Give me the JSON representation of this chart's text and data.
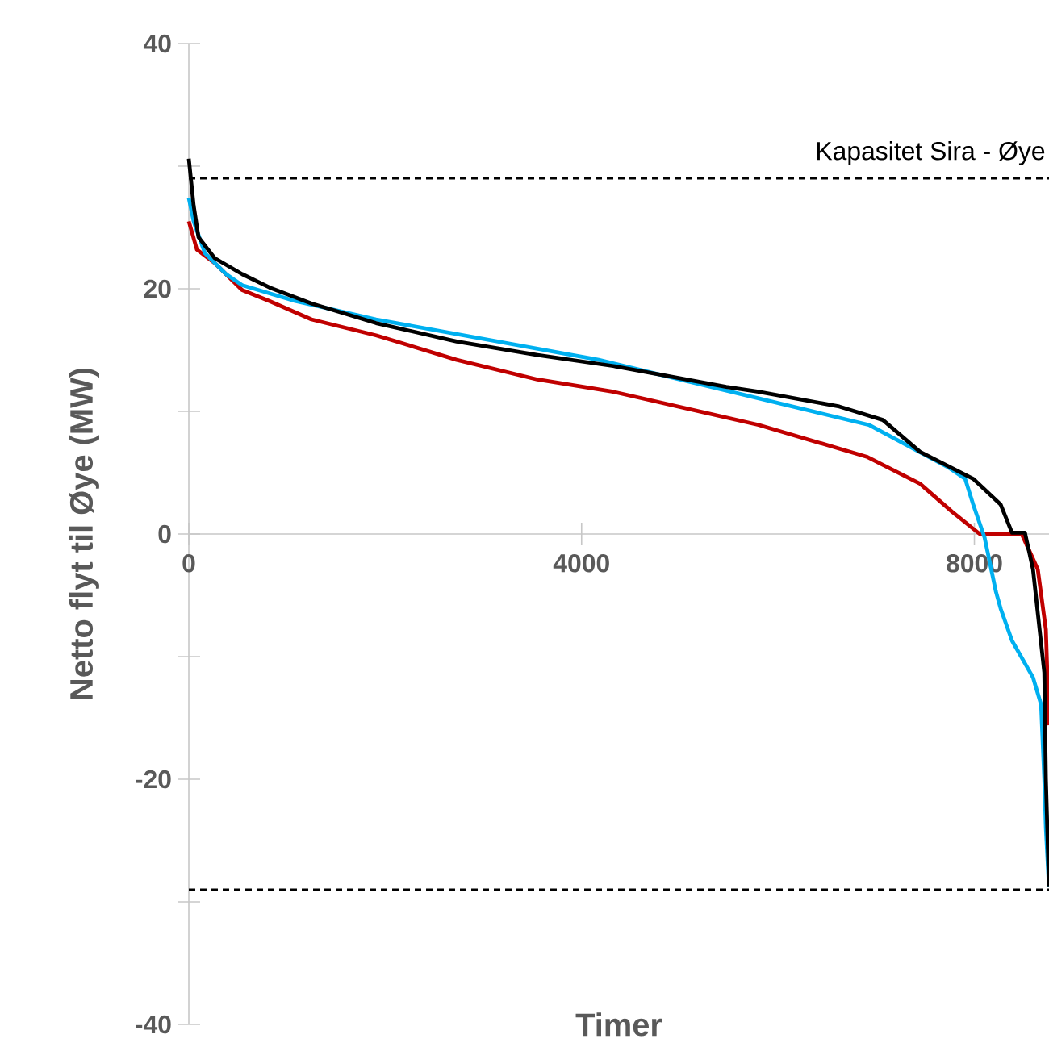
{
  "chart_data": {
    "type": "line",
    "xlabel": "Timer",
    "ylabel": "Netto flyt til Øye (MW)",
    "xlim": [
      0,
      8760
    ],
    "xticks": [
      0,
      4000,
      8000
    ],
    "ylim": [
      -40,
      40
    ],
    "yticks": [
      -40,
      {
        "value": -30,
        "label": null
      },
      -20,
      {
        "value": -10,
        "label": null
      },
      0,
      {
        "value": 10,
        "label": null
      },
      20,
      {
        "value": 30,
        "label": null
      },
      40
    ],
    "grid": false,
    "marker": "none",
    "line_style": "solid",
    "ref_lines": [
      {
        "axis": "y",
        "value": 29,
        "label": "Kapasitet Sira - Øye",
        "color": "#000000",
        "line_style": "dashed"
      },
      {
        "axis": "y",
        "value": -29,
        "color": "#000000",
        "line_style": "dashed"
      }
    ],
    "series": [
      {
        "color": "#c00000",
        "x": [
          0,
          82,
          263,
          542,
          822,
          1249,
          1907,
          2728,
          3550,
          4323,
          5802,
          6903,
          7446,
          7775,
          8055,
          8482,
          8646,
          8728,
          8745,
          8760
        ],
        "values": [
          25.5,
          23.2,
          22.1,
          19.9,
          19.0,
          17.5,
          16.2,
          14.2,
          12.6,
          11.6,
          8.9,
          6.3,
          4.1,
          1.8,
          0,
          0,
          -2.9,
          -7.8,
          -12,
          -15.6
        ]
      },
      {
        "color": "#00b0f0",
        "x": [
          0,
          49,
          164,
          378,
          542,
          1085,
          1907,
          4175,
          6925,
          7742,
          7906,
          7988,
          8104,
          8219,
          8268,
          8383,
          8597,
          8679,
          8712,
          8728,
          8760
        ],
        "values": [
          27.4,
          25.5,
          22.9,
          21.2,
          20.3,
          19.0,
          17.5,
          14.2,
          8.9,
          5.4,
          4.5,
          2.4,
          -0.3,
          -4.7,
          -6.1,
          -8.7,
          -11.7,
          -13.9,
          -20,
          -24,
          -28.8
        ]
      },
      {
        "color": "#000000",
        "x": [
          0,
          49,
          99,
          263,
          542,
          822,
          1249,
          1907,
          2728,
          3550,
          4323,
          4865,
          5473,
          5802,
          6624,
          7068,
          7446,
          7988,
          8268,
          8383,
          8515,
          8597,
          8712,
          8728,
          8760
        ],
        "values": [
          30.6,
          26.8,
          24.2,
          22.5,
          21.2,
          20.1,
          18.8,
          17.2,
          15.7,
          14.6,
          13.7,
          12.9,
          12.0,
          11.6,
          10.4,
          9.3,
          6.7,
          4.5,
          2.4,
          0.1,
          0.1,
          -2.9,
          -11.3,
          -20,
          -28.8
        ]
      }
    ]
  }
}
